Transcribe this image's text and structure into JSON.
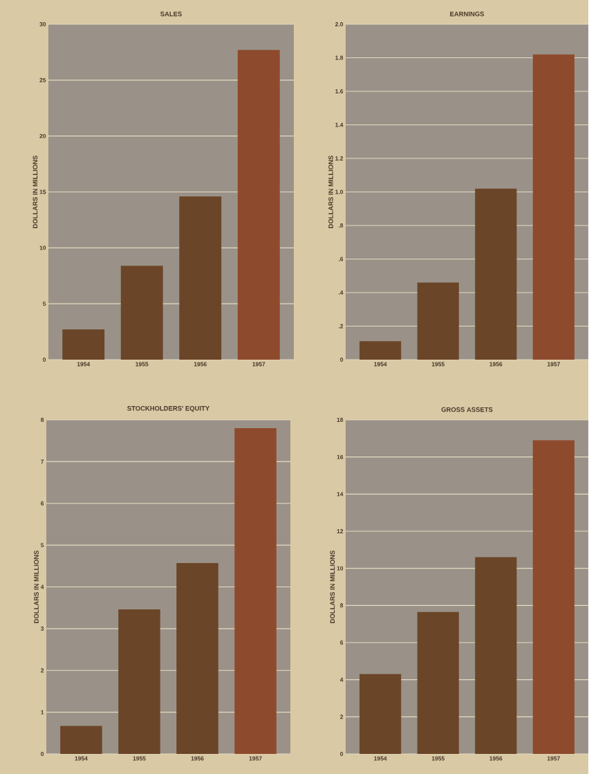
{
  "chart_data": [
    {
      "type": "bar",
      "title": "SALES",
      "ylabel": "DOLLARS IN MILLIONS",
      "categories": [
        "1954",
        "1955",
        "1956",
        "1957"
      ],
      "values": [
        2.7,
        8.4,
        14.6,
        27.7
      ],
      "colors": [
        "#6b4528",
        "#6b4528",
        "#6b4528",
        "#8e4a2c"
      ],
      "ylim": [
        0,
        30
      ],
      "yticks": [
        0,
        5,
        10,
        15,
        20,
        25,
        30
      ],
      "grid": "y"
    },
    {
      "type": "bar",
      "title": "EARNINGS",
      "ylabel": "DOLLARS IN MILLIONS",
      "categories": [
        "1954",
        "1955",
        "1956",
        "1957"
      ],
      "values": [
        0.11,
        0.46,
        1.02,
        1.82
      ],
      "colors": [
        "#6b4528",
        "#6b4528",
        "#6b4528",
        "#8e4a2c"
      ],
      "ylim": [
        0,
        2
      ],
      "yticks": [
        0,
        {
          "value": 0.2,
          "label": ".2"
        },
        {
          "value": 0.4,
          "label": ".4"
        },
        {
          "value": 0.6,
          "label": ".6"
        },
        {
          "value": 0.8,
          "label": ".8"
        },
        {
          "value": 1,
          "label": "1.0"
        },
        1.2,
        1.4,
        1.6,
        1.8,
        {
          "value": 2,
          "label": "2.0"
        }
      ],
      "grid": "y"
    },
    {
      "type": "bar",
      "title": "STOCKHOLDERS' EQUITY",
      "ylabel": "DOLLARS IN MILLIONS",
      "categories": [
        "1954",
        "1955",
        "1956",
        "1957"
      ],
      "values": [
        0.67,
        3.46,
        4.57,
        7.8
      ],
      "colors": [
        "#6b4528",
        "#6b4528",
        "#6b4528",
        "#8e4a2c"
      ],
      "ylim": [
        0,
        8
      ],
      "yticks": [
        0,
        1,
        2,
        3,
        4,
        5,
        6,
        7,
        8
      ],
      "grid": "y"
    },
    {
      "type": "bar",
      "title": "GROSS ASSETS",
      "ylabel": "DOLLARS IN MILLIONS",
      "categories": [
        "1954",
        "1955",
        "1956",
        "1957"
      ],
      "values": [
        4.3,
        7.65,
        10.6,
        16.9
      ],
      "colors": [
        "#6b4528",
        "#6b4528",
        "#6b4528",
        "#8e4a2c"
      ],
      "ylim": [
        0,
        18
      ],
      "yticks": [
        0,
        2,
        4,
        6,
        8,
        10,
        12,
        14,
        16,
        18
      ],
      "grid": "y"
    }
  ]
}
